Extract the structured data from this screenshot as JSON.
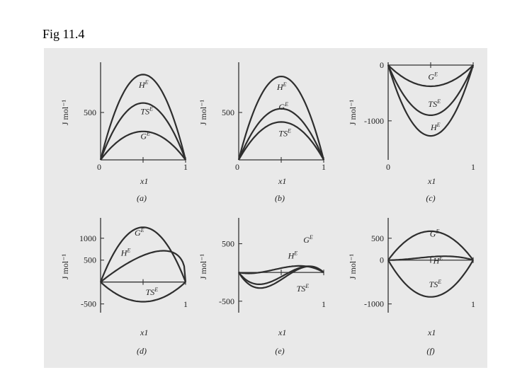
{
  "figure": {
    "title": "Fig 11.4"
  },
  "chart_data": [
    {
      "panel": "a",
      "caption": "(a)",
      "type": "line",
      "xlabel": "x1",
      "ylabel": "J mol⁻¹",
      "xlim": [
        0,
        1
      ],
      "ylim": [
        0,
        1000
      ],
      "xticks": [
        0,
        1
      ],
      "yticks": [
        500
      ],
      "series": [
        {
          "name": "H^E",
          "peak": 900,
          "shape": "sym"
        },
        {
          "name": "TS^E",
          "peak": 600,
          "shape": "sym"
        },
        {
          "name": "G^E",
          "peak": 300,
          "shape": "sym"
        }
      ],
      "labels": [
        {
          "text": "H",
          "sup": "E",
          "x": 0.45,
          "y": 760
        },
        {
          "text": "TS",
          "sup": "E",
          "x": 0.47,
          "y": 480
        },
        {
          "text": "G",
          "sup": "E",
          "x": 0.47,
          "y": 220
        }
      ]
    },
    {
      "panel": "b",
      "caption": "(b)",
      "type": "line",
      "xlabel": "x1",
      "ylabel": "J mol⁻¹",
      "xlim": [
        0,
        1
      ],
      "ylim": [
        0,
        1000
      ],
      "xticks": [
        0,
        1
      ],
      "yticks": [
        500
      ],
      "series": [
        {
          "name": "H^E",
          "peak": 880,
          "shape": "sym"
        },
        {
          "name": "G^E",
          "peak": 540,
          "shape": "sym"
        },
        {
          "name": "TS^E",
          "peak": 400,
          "shape": "sym"
        }
      ],
      "labels": [
        {
          "text": "H",
          "sup": "E",
          "x": 0.45,
          "y": 740
        },
        {
          "text": "G",
          "sup": "E",
          "x": 0.47,
          "y": 530
        },
        {
          "text": "TS",
          "sup": "E",
          "x": 0.47,
          "y": 250
        }
      ]
    },
    {
      "panel": "c",
      "caption": "(c)",
      "type": "line",
      "xlabel": "x1",
      "ylabel": "J mol⁻¹",
      "xlim": [
        0,
        1
      ],
      "ylim": [
        -1700,
        0
      ],
      "xticks": [
        0,
        1
      ],
      "yticks": [
        0,
        -1000
      ],
      "series": [
        {
          "name": "G^E",
          "peak": -380,
          "shape": "sym"
        },
        {
          "name": "TS^E",
          "peak": -900,
          "shape": "sym"
        },
        {
          "name": "H^E",
          "peak": -1270,
          "shape": "sym"
        }
      ],
      "labels": [
        {
          "text": "G",
          "sup": "E",
          "x": 0.47,
          "y": -260
        },
        {
          "text": "TS",
          "sup": "E",
          "x": 0.47,
          "y": -750
        },
        {
          "text": "H",
          "sup": "E",
          "x": 0.5,
          "y": -1170
        }
      ]
    },
    {
      "panel": "d",
      "caption": "(d)",
      "type": "line",
      "xlabel": "x1",
      "ylabel": "J mol⁻¹",
      "xlim": [
        0,
        1
      ],
      "ylim": [
        -700,
        1400
      ],
      "xticks": [
        0,
        1
      ],
      "yticks": [
        1000,
        500,
        -500
      ],
      "series": [
        {
          "name": "G^E",
          "peak": 1250,
          "shape": "sym"
        },
        {
          "name": "H^E",
          "peak": 850,
          "shape": "hump"
        },
        {
          "name": "TS^E",
          "peak": -450,
          "shape": "sym"
        }
      ],
      "labels": [
        {
          "text": "G",
          "sup": "E",
          "x": 0.4,
          "y": 1060
        },
        {
          "text": "H",
          "sup": "E",
          "x": 0.24,
          "y": 600
        },
        {
          "text": "TS",
          "sup": "E",
          "x": 0.53,
          "y": -300
        }
      ]
    },
    {
      "panel": "e",
      "caption": "(e)",
      "type": "line",
      "xlabel": "x1",
      "ylabel": "J mol⁻¹",
      "xlim": [
        0,
        1
      ],
      "ylim": [
        -700,
        900
      ],
      "xticks": [
        0,
        1
      ],
      "yticks": [
        500,
        -500
      ],
      "series": [
        {
          "name": "G^E",
          "a": 300,
          "b": 1600,
          "shape": "s"
        },
        {
          "name": "H^E",
          "a": 500,
          "b": 1900,
          "shape": "s"
        },
        {
          "name": "TS^E",
          "a": -300,
          "b": 600,
          "shape": "s"
        }
      ],
      "labels": [
        {
          "text": "G",
          "sup": "E",
          "x": 0.76,
          "y": 520
        },
        {
          "text": "H",
          "sup": "E",
          "x": 0.58,
          "y": 240
        },
        {
          "text": "TS",
          "sup": "E",
          "x": 0.68,
          "y": -330
        }
      ]
    },
    {
      "panel": "f",
      "caption": "(f)",
      "type": "line",
      "xlabel": "x1",
      "ylabel": "J mol⁻¹",
      "xlim": [
        0,
        1
      ],
      "ylim": [
        -1200,
        900
      ],
      "xticks": [
        0,
        1
      ],
      "yticks": [
        500,
        0,
        -1000
      ],
      "series": [
        {
          "name": "G^E",
          "peak": 660,
          "shape": "sym"
        },
        {
          "name": "H^E",
          "a": -300,
          "b": 300,
          "shape": "s"
        },
        {
          "name": "TS^E",
          "peak": -840,
          "shape": "sym"
        }
      ],
      "labels": [
        {
          "text": "G",
          "sup": "E",
          "x": 0.49,
          "y": 540
        },
        {
          "text": "H",
          "sup": "E",
          "x": 0.53,
          "y": -80
        },
        {
          "text": "TS",
          "sup": "E",
          "x": 0.48,
          "y": -620
        }
      ]
    }
  ]
}
